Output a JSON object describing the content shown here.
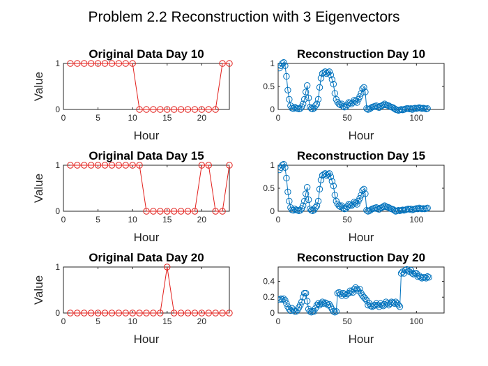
{
  "figure": {
    "title": "Problem 2.2 Reconstruction with 3 Eigenvectors",
    "colors": {
      "original": "#e2201c",
      "reconstruction": "#0072bd",
      "axis": "#262626"
    }
  },
  "chart_data": [
    {
      "type": "line",
      "title": "Original Data Day 10",
      "xlabel": "Hour",
      "ylabel": "Value",
      "xlim": [
        0,
        24
      ],
      "ylim": [
        0,
        1
      ],
      "xticks": [
        0,
        5,
        10,
        15,
        20
      ],
      "yticks": [
        0,
        1
      ],
      "marker": "circle",
      "color": "#e2201c",
      "x": [
        1,
        2,
        3,
        4,
        5,
        6,
        7,
        8,
        9,
        10,
        11,
        12,
        13,
        14,
        15,
        16,
        17,
        18,
        19,
        20,
        21,
        22,
        23,
        24
      ],
      "values": [
        1,
        1,
        1,
        1,
        1,
        1,
        1,
        1,
        1,
        1,
        0,
        0,
        0,
        0,
        0,
        0,
        0,
        0,
        0,
        0,
        0,
        0,
        1,
        1
      ]
    },
    {
      "type": "line",
      "title": "Reconstruction Day 10",
      "xlabel": "Hour",
      "ylabel": "",
      "xlim": [
        0,
        120
      ],
      "ylim": [
        0,
        1
      ],
      "xticks": [
        0,
        50,
        100
      ],
      "yticks": [
        0,
        0.5,
        1
      ],
      "marker": "circle",
      "color": "#0072bd",
      "values": [
        0.9,
        0.95,
        1.0,
        1.02,
        0.95,
        0.72,
        0.42,
        0.22,
        0.08,
        0.03,
        0.02,
        0.05,
        0.03,
        0.02,
        0.01,
        0.02,
        0.06,
        0.12,
        0.22,
        0.38,
        0.52,
        0.25,
        0.05,
        0.02,
        0.01,
        0.03,
        0.08,
        0.12,
        0.22,
        0.48,
        0.68,
        0.78,
        0.8,
        0.82,
        0.78,
        0.8,
        0.82,
        0.75,
        0.65,
        0.55,
        0.35,
        0.22,
        0.16,
        0.12,
        0.1,
        0.12,
        0.07,
        0.05,
        0.06,
        0.1,
        0.15,
        0.14,
        0.12,
        0.15,
        0.2,
        0.18,
        0.15,
        0.22,
        0.28,
        0.35,
        0.45,
        0.48,
        0.38,
        0.02,
        0.0,
        0.01,
        0.03,
        0.05,
        0.06,
        0.07,
        0.08,
        0.05,
        0.04,
        0.07,
        0.08,
        0.1,
        0.12,
        0.1,
        0.09,
        0.08,
        0.06,
        0.05,
        0.04,
        0.02,
        0.0,
        -0.01,
        -0.02,
        -0.01,
        0.0,
        -0.01,
        0.0,
        0.01,
        0.02,
        0.02,
        0.01,
        0.02,
        0.0,
        0.02,
        0.03,
        0.02,
        0.03,
        0.04,
        0.03,
        0.02,
        0.03,
        0.02,
        0.01,
        0.02
      ]
    },
    {
      "type": "line",
      "title": "Original Data Day 15",
      "xlabel": "Hour",
      "ylabel": "Value",
      "xlim": [
        0,
        24
      ],
      "ylim": [
        0,
        1
      ],
      "xticks": [
        0,
        5,
        10,
        15,
        20
      ],
      "yticks": [
        0,
        1
      ],
      "marker": "circle",
      "color": "#e2201c",
      "x": [
        1,
        2,
        3,
        4,
        5,
        6,
        7,
        8,
        9,
        10,
        11,
        12,
        13,
        14,
        15,
        16,
        17,
        18,
        19,
        20,
        21,
        22,
        23,
        24
      ],
      "values": [
        1,
        1,
        1,
        1,
        1,
        1,
        1,
        1,
        1,
        1,
        1,
        0,
        0,
        0,
        0,
        0,
        0,
        0,
        0,
        1,
        1,
        0,
        0,
        1
      ]
    },
    {
      "type": "line",
      "title": "Reconstruction Day 15",
      "xlabel": "Hour",
      "ylabel": "",
      "xlim": [
        0,
        120
      ],
      "ylim": [
        0,
        1
      ],
      "xticks": [
        0,
        50,
        100
      ],
      "yticks": [
        0,
        0.5,
        1
      ],
      "marker": "circle",
      "color": "#0072bd",
      "values": [
        0.9,
        0.95,
        1.0,
        1.02,
        0.95,
        0.72,
        0.42,
        0.22,
        0.08,
        0.03,
        0.02,
        0.05,
        0.03,
        0.02,
        0.01,
        0.02,
        0.06,
        0.12,
        0.22,
        0.38,
        0.52,
        0.25,
        0.05,
        0.02,
        0.01,
        0.03,
        0.08,
        0.12,
        0.22,
        0.48,
        0.68,
        0.78,
        0.8,
        0.82,
        0.78,
        0.8,
        0.82,
        0.75,
        0.65,
        0.55,
        0.35,
        0.22,
        0.16,
        0.12,
        0.1,
        0.12,
        0.07,
        0.05,
        0.06,
        0.1,
        0.15,
        0.14,
        0.12,
        0.15,
        0.2,
        0.18,
        0.15,
        0.22,
        0.28,
        0.35,
        0.45,
        0.48,
        0.38,
        0.02,
        0.0,
        0.01,
        0.03,
        0.05,
        0.06,
        0.07,
        0.08,
        0.05,
        0.04,
        0.07,
        0.08,
        0.1,
        0.12,
        0.1,
        0.09,
        0.08,
        0.06,
        0.05,
        0.04,
        0.02,
        0.0,
        0.01,
        0.02,
        0.01,
        0.02,
        0.03,
        0.02,
        0.03,
        0.04,
        0.05,
        0.04,
        0.05,
        0.03,
        0.04,
        0.05,
        0.06,
        0.05,
        0.07,
        0.06,
        0.05,
        0.06,
        0.05,
        0.06,
        0.07
      ]
    },
    {
      "type": "line",
      "title": "Original Data Day 20",
      "xlabel": "Hour",
      "ylabel": "Value",
      "xlim": [
        0,
        24
      ],
      "ylim": [
        0,
        1
      ],
      "xticks": [
        0,
        5,
        10,
        15,
        20
      ],
      "yticks": [
        0,
        1
      ],
      "marker": "circle",
      "color": "#e2201c",
      "x": [
        1,
        2,
        3,
        4,
        5,
        6,
        7,
        8,
        9,
        10,
        11,
        12,
        13,
        14,
        15,
        16,
        17,
        18,
        19,
        20,
        21,
        22,
        23,
        24
      ],
      "values": [
        0,
        0,
        0,
        0,
        0,
        0,
        0,
        0,
        0,
        0,
        0,
        0,
        0,
        0,
        1,
        0,
        0,
        0,
        0,
        0,
        0,
        0,
        0,
        0
      ]
    },
    {
      "type": "line",
      "title": "Reconstruction Day 20",
      "xlabel": "Hour",
      "ylabel": "",
      "xlim": [
        0,
        120
      ],
      "ylim": [
        0,
        0.58
      ],
      "xticks": [
        0,
        50,
        100
      ],
      "yticks": [
        0,
        0.2,
        0.4
      ],
      "marker": "circle",
      "color": "#0072bd",
      "values": [
        0.17,
        0.18,
        0.17,
        0.18,
        0.16,
        0.12,
        0.08,
        0.05,
        0.03,
        0.06,
        0.04,
        0.02,
        0.02,
        0.04,
        0.07,
        0.1,
        0.14,
        0.2,
        0.25,
        0.25,
        0.15,
        0.05,
        0.02,
        0.01,
        0.02,
        0.02,
        0.06,
        0.1,
        0.12,
        0.1,
        0.12,
        0.14,
        0.12,
        0.13,
        0.12,
        0.1,
        0.11,
        0.08,
        0.05,
        0.02,
        0.01,
        0.02,
        0.25,
        0.26,
        0.24,
        0.22,
        0.25,
        0.24,
        0.22,
        0.24,
        0.25,
        0.28,
        0.27,
        0.26,
        0.3,
        0.32,
        0.3,
        0.28,
        0.3,
        0.25,
        0.22,
        0.2,
        0.18,
        0.16,
        0.1,
        0.12,
        0.09,
        0.08,
        0.09,
        0.1,
        0.12,
        0.1,
        0.08,
        0.12,
        0.1,
        0.09,
        0.11,
        0.14,
        0.12,
        0.1,
        0.12,
        0.14,
        0.13,
        0.12,
        0.14,
        0.12,
        0.1,
        0.08,
        0.5,
        0.52,
        0.5,
        0.54,
        0.55,
        0.53,
        0.52,
        0.54,
        0.5,
        0.49,
        0.5,
        0.5,
        0.46,
        0.47,
        0.45,
        0.44,
        0.45,
        0.45,
        0.44,
        0.46,
        0.45
      ]
    }
  ]
}
